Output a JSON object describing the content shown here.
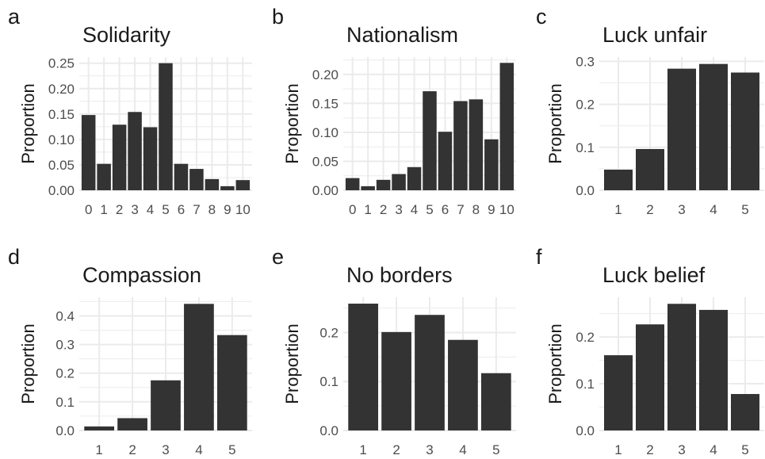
{
  "chart_data": [
    {
      "panel_letter": "a",
      "type": "bar",
      "title": "Solidarity",
      "ylabel": "Proportion",
      "xlabel": "",
      "categories": [
        "0",
        "1",
        "2",
        "3",
        "4",
        "5",
        "6",
        "7",
        "8",
        "9",
        "10"
      ],
      "values": [
        0.148,
        0.052,
        0.129,
        0.154,
        0.124,
        0.25,
        0.052,
        0.042,
        0.022,
        0.008,
        0.02
      ],
      "ylim": [
        0,
        0.262
      ],
      "yticks": [
        0,
        0.05,
        0.1,
        0.15,
        0.2,
        0.25
      ],
      "ytick_labels": [
        "0.00",
        "0.05",
        "0.10",
        "0.15",
        "0.20",
        "0.25"
      ],
      "grid": true,
      "legend": "none"
    },
    {
      "panel_letter": "b",
      "type": "bar",
      "title": "Nationalism",
      "ylabel": "Proportion",
      "xlabel": "",
      "categories": [
        "0",
        "1",
        "2",
        "3",
        "4",
        "5",
        "6",
        "7",
        "8",
        "9",
        "10"
      ],
      "values": [
        0.021,
        0.007,
        0.018,
        0.028,
        0.04,
        0.171,
        0.101,
        0.154,
        0.157,
        0.088,
        0.22
      ],
      "ylim": [
        0,
        0.23
      ],
      "yticks": [
        0,
        0.05,
        0.1,
        0.15,
        0.2
      ],
      "ytick_labels": [
        "0.00",
        "0.05",
        "0.10",
        "0.15",
        "0.20"
      ],
      "grid": true,
      "legend": "none"
    },
    {
      "panel_letter": "c",
      "type": "bar",
      "title": "Luck unfair",
      "ylabel": "Proportion",
      "xlabel": "",
      "categories": [
        "1",
        "2",
        "3",
        "4",
        "5"
      ],
      "values": [
        0.048,
        0.096,
        0.283,
        0.294,
        0.274
      ],
      "ylim": [
        0,
        0.31
      ],
      "yticks": [
        0,
        0.1,
        0.2,
        0.3
      ],
      "ytick_labels": [
        "0.0",
        "0.1",
        "0.2",
        "0.3"
      ],
      "grid": true,
      "legend": "none"
    },
    {
      "panel_letter": "d",
      "type": "bar",
      "title": "Compassion",
      "ylabel": "Proportion",
      "xlabel": "",
      "categories": [
        "1",
        "2",
        "3",
        "4",
        "5"
      ],
      "values": [
        0.014,
        0.043,
        0.175,
        0.442,
        0.333
      ],
      "ylim": [
        0,
        0.465
      ],
      "yticks": [
        0,
        0.1,
        0.2,
        0.3,
        0.4
      ],
      "ytick_labels": [
        "0.0",
        "0.1",
        "0.2",
        "0.3",
        "0.4"
      ],
      "grid": true,
      "legend": "none"
    },
    {
      "panel_letter": "e",
      "type": "bar",
      "title": "No borders",
      "ylabel": "Proportion",
      "xlabel": "",
      "categories": [
        "1",
        "2",
        "3",
        "4",
        "5"
      ],
      "values": [
        0.259,
        0.201,
        0.236,
        0.185,
        0.117
      ],
      "ylim": [
        0,
        0.272
      ],
      "yticks": [
        0,
        0.1,
        0.2
      ],
      "ytick_labels": [
        "0.0",
        "0.1",
        "0.2"
      ],
      "grid": true,
      "legend": "none"
    },
    {
      "panel_letter": "f",
      "type": "bar",
      "title": "Luck belief",
      "ylabel": "Proportion",
      "xlabel": "",
      "categories": [
        "1",
        "2",
        "3",
        "4",
        "5"
      ],
      "values": [
        0.161,
        0.227,
        0.271,
        0.258,
        0.078
      ],
      "ylim": [
        0,
        0.285
      ],
      "yticks": [
        0,
        0.1,
        0.2
      ],
      "ytick_labels": [
        "0.0",
        "0.1",
        "0.2"
      ],
      "grid": true,
      "legend": "none"
    }
  ],
  "colors": {
    "bar": "#333333",
    "grid": "#ebebeb",
    "text": "#1a1a1a",
    "axis_text": "#4d4d4d",
    "background": "#ffffff"
  }
}
